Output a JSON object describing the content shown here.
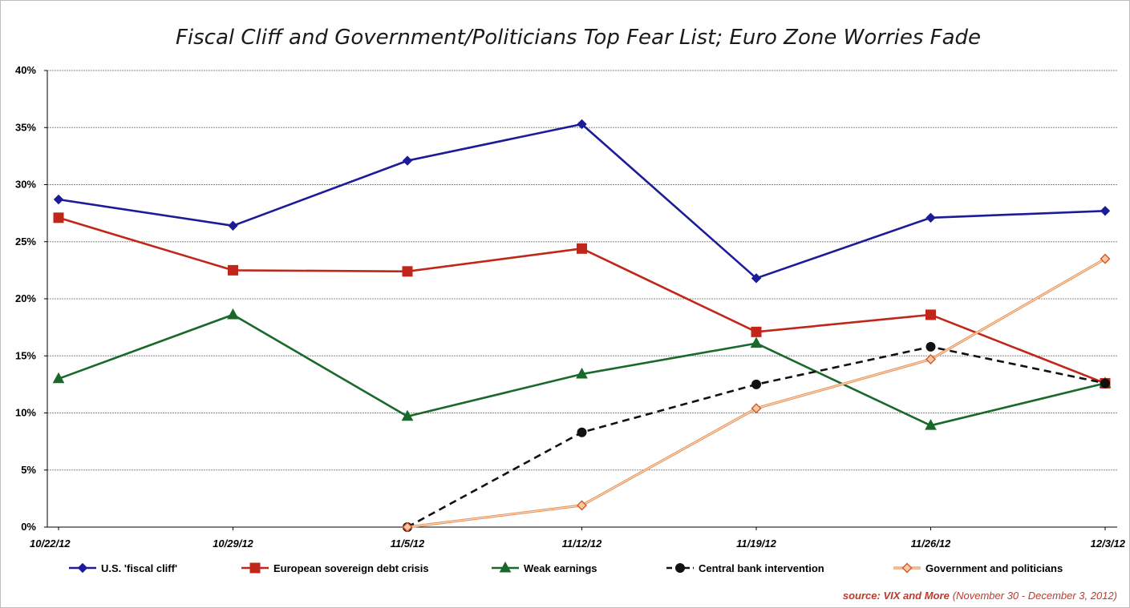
{
  "chart_data": {
    "type": "line",
    "title": "Fiscal Cliff and Government/Politicians Top Fear List; Euro Zone Worries Fade",
    "categories": [
      "10/22/12",
      "10/29/12",
      "11/5/12",
      "11/12/12",
      "11/19/12",
      "11/26/12",
      "12/3/12"
    ],
    "ylim": [
      0,
      40
    ],
    "yticks": [
      0,
      5,
      10,
      15,
      20,
      25,
      30,
      35,
      40
    ],
    "ytick_labels": [
      "0%",
      "5%",
      "10%",
      "15%",
      "20%",
      "25%",
      "30%",
      "35%",
      "40%"
    ],
    "grid": true,
    "legend_position": "bottom",
    "series": [
      {
        "name": "U.S. 'fiscal cliff'",
        "color": "#1c1c99",
        "marker": "diamond",
        "style": "solid",
        "values": [
          28.7,
          26.4,
          32.1,
          35.3,
          21.8,
          27.1,
          27.7
        ]
      },
      {
        "name": "European sovereign debt crisis",
        "color": "#c0271a",
        "marker": "square",
        "style": "solid",
        "values": [
          27.1,
          22.5,
          22.4,
          24.4,
          17.1,
          18.6,
          12.6
        ]
      },
      {
        "name": "Weak earnings",
        "color": "#19692b",
        "marker": "triangle",
        "style": "solid",
        "values": [
          13.0,
          18.6,
          9.7,
          13.4,
          16.1,
          8.9,
          12.6
        ]
      },
      {
        "name": "Central bank intervention",
        "color": "#111111",
        "marker": "circle",
        "style": "dashed",
        "values": [
          null,
          null,
          0.0,
          8.3,
          12.5,
          15.8,
          12.6
        ]
      },
      {
        "name": "Government and politicians",
        "color": "#e8945a",
        "marker": "diamond-open",
        "style": "double",
        "values": [
          null,
          null,
          0.0,
          1.9,
          10.4,
          14.7,
          23.5
        ]
      }
    ]
  },
  "source": {
    "label": "source:  VIX and More",
    "dates": "(November 30 - December 3, 2012)"
  }
}
